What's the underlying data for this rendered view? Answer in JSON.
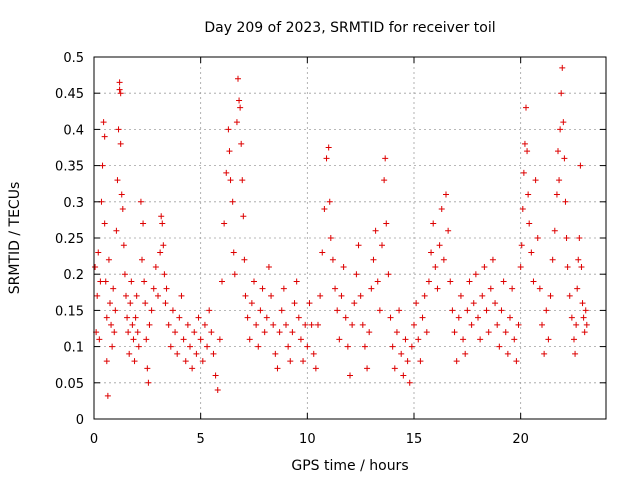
{
  "chart_data": {
    "type": "scatter",
    "title": "Day 209 of 2023, SRMTID for receiver toil",
    "xlabel": "GPS time / hours",
    "ylabel": "SRMTID / TECUs",
    "xlim": [
      0,
      24
    ],
    "ylim": [
      0,
      0.5
    ],
    "xticks": [
      0,
      5,
      10,
      15,
      20
    ],
    "xtick_labels": [
      "0",
      "5",
      "10",
      "15",
      "20"
    ],
    "yticks": [
      0,
      0.05,
      0.1,
      0.15,
      0.2,
      0.25,
      0.3,
      0.35,
      0.4,
      0.45,
      0.5
    ],
    "ytick_labels": [
      "0",
      "0.05",
      "0.1",
      "0.15",
      "0.2",
      "0.25",
      "0.3",
      "0.35",
      "0.4",
      "0.45",
      "0.5"
    ],
    "grid": true,
    "marker": "plus",
    "color": "#dd0000",
    "series": [
      {
        "points": [
          [
            0.05,
            0.21
          ],
          [
            0.1,
            0.12
          ],
          [
            0.15,
            0.17
          ],
          [
            0.2,
            0.23
          ],
          [
            0.25,
            0.11
          ],
          [
            0.3,
            0.19
          ],
          [
            0.35,
            0.3
          ],
          [
            0.4,
            0.35
          ],
          [
            0.45,
            0.41
          ],
          [
            0.5,
            0.39
          ],
          [
            0.5,
            0.27
          ],
          [
            0.55,
            0.19
          ],
          [
            0.6,
            0.14
          ],
          [
            0.6,
            0.08
          ],
          [
            0.65,
            0.032
          ],
          [
            0.7,
            0.22
          ],
          [
            0.75,
            0.16
          ],
          [
            0.8,
            0.13
          ],
          [
            0.85,
            0.1
          ],
          [
            0.9,
            0.18
          ],
          [
            0.95,
            0.12
          ],
          [
            1.0,
            0.15
          ],
          [
            1.05,
            0.26
          ],
          [
            1.1,
            0.33
          ],
          [
            1.15,
            0.4
          ],
          [
            1.2,
            0.465
          ],
          [
            1.2,
            0.455
          ],
          [
            1.25,
            0.45
          ],
          [
            1.25,
            0.38
          ],
          [
            1.3,
            0.31
          ],
          [
            1.35,
            0.29
          ],
          [
            1.4,
            0.24
          ],
          [
            1.45,
            0.2
          ],
          [
            1.5,
            0.17
          ],
          [
            1.55,
            0.14
          ],
          [
            1.6,
            0.12
          ],
          [
            1.65,
            0.09
          ],
          [
            1.7,
            0.16
          ],
          [
            1.75,
            0.19
          ],
          [
            1.8,
            0.13
          ],
          [
            1.85,
            0.11
          ],
          [
            1.9,
            0.08
          ],
          [
            1.95,
            0.14
          ],
          [
            2.0,
            0.17
          ],
          [
            2.05,
            0.12
          ],
          [
            2.1,
            0.1
          ],
          [
            2.2,
            0.3
          ],
          [
            2.25,
            0.22
          ],
          [
            2.3,
            0.27
          ],
          [
            2.35,
            0.19
          ],
          [
            2.4,
            0.16
          ],
          [
            2.45,
            0.11
          ],
          [
            2.5,
            0.07
          ],
          [
            2.55,
            0.05
          ],
          [
            2.6,
            0.13
          ],
          [
            2.7,
            0.15
          ],
          [
            2.8,
            0.18
          ],
          [
            2.9,
            0.21
          ],
          [
            3.0,
            0.17
          ],
          [
            3.1,
            0.23
          ],
          [
            3.15,
            0.28
          ],
          [
            3.2,
            0.27
          ],
          [
            3.25,
            0.24
          ],
          [
            3.3,
            0.2
          ],
          [
            3.35,
            0.16
          ],
          [
            3.4,
            0.18
          ],
          [
            3.5,
            0.13
          ],
          [
            3.6,
            0.1
          ],
          [
            3.7,
            0.15
          ],
          [
            3.8,
            0.12
          ],
          [
            3.9,
            0.09
          ],
          [
            4.0,
            0.14
          ],
          [
            4.1,
            0.17
          ],
          [
            4.2,
            0.11
          ],
          [
            4.3,
            0.08
          ],
          [
            4.4,
            0.13
          ],
          [
            4.5,
            0.1
          ],
          [
            4.6,
            0.07
          ],
          [
            4.7,
            0.12
          ],
          [
            4.8,
            0.09
          ],
          [
            4.9,
            0.14
          ],
          [
            5.0,
            0.11
          ],
          [
            5.1,
            0.08
          ],
          [
            5.2,
            0.13
          ],
          [
            5.3,
            0.1
          ],
          [
            5.4,
            0.15
          ],
          [
            5.5,
            0.12
          ],
          [
            5.6,
            0.09
          ],
          [
            5.7,
            0.06
          ],
          [
            5.8,
            0.04
          ],
          [
            5.9,
            0.11
          ],
          [
            6.0,
            0.19
          ],
          [
            6.1,
            0.27
          ],
          [
            6.2,
            0.34
          ],
          [
            6.3,
            0.4
          ],
          [
            6.35,
            0.37
          ],
          [
            6.4,
            0.33
          ],
          [
            6.5,
            0.3
          ],
          [
            6.55,
            0.23
          ],
          [
            6.6,
            0.2
          ],
          [
            6.7,
            0.41
          ],
          [
            6.75,
            0.47
          ],
          [
            6.8,
            0.44
          ],
          [
            6.85,
            0.43
          ],
          [
            6.9,
            0.38
          ],
          [
            6.95,
            0.33
          ],
          [
            7.0,
            0.28
          ],
          [
            7.05,
            0.22
          ],
          [
            7.1,
            0.17
          ],
          [
            7.2,
            0.14
          ],
          [
            7.3,
            0.11
          ],
          [
            7.4,
            0.16
          ],
          [
            7.5,
            0.19
          ],
          [
            7.6,
            0.13
          ],
          [
            7.7,
            0.1
          ],
          [
            7.8,
            0.15
          ],
          [
            7.9,
            0.18
          ],
          [
            8.0,
            0.12
          ],
          [
            8.1,
            0.14
          ],
          [
            8.2,
            0.21
          ],
          [
            8.3,
            0.17
          ],
          [
            8.4,
            0.13
          ],
          [
            8.5,
            0.09
          ],
          [
            8.6,
            0.07
          ],
          [
            8.7,
            0.12
          ],
          [
            8.8,
            0.15
          ],
          [
            8.9,
            0.18
          ],
          [
            9.0,
            0.13
          ],
          [
            9.1,
            0.1
          ],
          [
            9.2,
            0.08
          ],
          [
            9.3,
            0.12
          ],
          [
            9.4,
            0.16
          ],
          [
            9.5,
            0.19
          ],
          [
            9.6,
            0.14
          ],
          [
            9.7,
            0.11
          ],
          [
            9.8,
            0.08
          ],
          [
            9.9,
            0.13
          ],
          [
            10.0,
            0.1
          ],
          [
            10.1,
            0.16
          ],
          [
            10.2,
            0.13
          ],
          [
            10.3,
            0.09
          ],
          [
            10.4,
            0.07
          ],
          [
            10.5,
            0.13
          ],
          [
            10.6,
            0.17
          ],
          [
            10.7,
            0.23
          ],
          [
            10.8,
            0.29
          ],
          [
            10.9,
            0.36
          ],
          [
            11.0,
            0.375
          ],
          [
            11.05,
            0.3
          ],
          [
            11.1,
            0.25
          ],
          [
            11.2,
            0.22
          ],
          [
            11.3,
            0.18
          ],
          [
            11.4,
            0.15
          ],
          [
            11.5,
            0.11
          ],
          [
            11.6,
            0.17
          ],
          [
            11.7,
            0.21
          ],
          [
            11.8,
            0.14
          ],
          [
            11.9,
            0.1
          ],
          [
            12.0,
            0.06
          ],
          [
            12.1,
            0.13
          ],
          [
            12.2,
            0.16
          ],
          [
            12.3,
            0.2
          ],
          [
            12.4,
            0.24
          ],
          [
            12.5,
            0.17
          ],
          [
            12.6,
            0.13
          ],
          [
            12.7,
            0.1
          ],
          [
            12.8,
            0.07
          ],
          [
            12.9,
            0.12
          ],
          [
            13.0,
            0.18
          ],
          [
            13.1,
            0.22
          ],
          [
            13.2,
            0.26
          ],
          [
            13.3,
            0.19
          ],
          [
            13.4,
            0.15
          ],
          [
            13.5,
            0.24
          ],
          [
            13.6,
            0.33
          ],
          [
            13.65,
            0.36
          ],
          [
            13.7,
            0.27
          ],
          [
            13.8,
            0.2
          ],
          [
            13.9,
            0.14
          ],
          [
            14.0,
            0.1
          ],
          [
            14.1,
            0.07
          ],
          [
            14.2,
            0.12
          ],
          [
            14.3,
            0.15
          ],
          [
            14.4,
            0.09
          ],
          [
            14.5,
            0.06
          ],
          [
            14.6,
            0.11
          ],
          [
            14.7,
            0.08
          ],
          [
            14.8,
            0.05
          ],
          [
            14.9,
            0.1
          ],
          [
            15.0,
            0.13
          ],
          [
            15.1,
            0.16
          ],
          [
            15.2,
            0.11
          ],
          [
            15.3,
            0.08
          ],
          [
            15.4,
            0.14
          ],
          [
            15.5,
            0.17
          ],
          [
            15.6,
            0.12
          ],
          [
            15.7,
            0.19
          ],
          [
            15.8,
            0.23
          ],
          [
            15.9,
            0.27
          ],
          [
            16.0,
            0.21
          ],
          [
            16.1,
            0.18
          ],
          [
            16.2,
            0.24
          ],
          [
            16.3,
            0.29
          ],
          [
            16.4,
            0.22
          ],
          [
            16.5,
            0.31
          ],
          [
            16.6,
            0.26
          ],
          [
            16.7,
            0.19
          ],
          [
            16.8,
            0.15
          ],
          [
            16.9,
            0.12
          ],
          [
            17.0,
            0.08
          ],
          [
            17.1,
            0.14
          ],
          [
            17.2,
            0.17
          ],
          [
            17.3,
            0.11
          ],
          [
            17.4,
            0.09
          ],
          [
            17.5,
            0.15
          ],
          [
            17.6,
            0.19
          ],
          [
            17.7,
            0.13
          ],
          [
            17.8,
            0.16
          ],
          [
            17.9,
            0.2
          ],
          [
            18.0,
            0.14
          ],
          [
            18.1,
            0.11
          ],
          [
            18.2,
            0.17
          ],
          [
            18.3,
            0.21
          ],
          [
            18.4,
            0.15
          ],
          [
            18.5,
            0.12
          ],
          [
            18.6,
            0.18
          ],
          [
            18.7,
            0.22
          ],
          [
            18.8,
            0.16
          ],
          [
            18.9,
            0.13
          ],
          [
            19.0,
            0.1
          ],
          [
            19.1,
            0.15
          ],
          [
            19.2,
            0.19
          ],
          [
            19.3,
            0.12
          ],
          [
            19.4,
            0.09
          ],
          [
            19.5,
            0.14
          ],
          [
            19.6,
            0.18
          ],
          [
            19.7,
            0.11
          ],
          [
            19.8,
            0.08
          ],
          [
            19.9,
            0.13
          ],
          [
            20.0,
            0.21
          ],
          [
            20.05,
            0.24
          ],
          [
            20.1,
            0.29
          ],
          [
            20.15,
            0.34
          ],
          [
            20.2,
            0.38
          ],
          [
            20.25,
            0.43
          ],
          [
            20.3,
            0.37
          ],
          [
            20.35,
            0.31
          ],
          [
            20.4,
            0.27
          ],
          [
            20.5,
            0.23
          ],
          [
            20.6,
            0.19
          ],
          [
            20.7,
            0.33
          ],
          [
            20.8,
            0.25
          ],
          [
            20.9,
            0.18
          ],
          [
            21.0,
            0.13
          ],
          [
            21.1,
            0.09
          ],
          [
            21.2,
            0.15
          ],
          [
            21.3,
            0.11
          ],
          [
            21.4,
            0.17
          ],
          [
            21.5,
            0.22
          ],
          [
            21.6,
            0.26
          ],
          [
            21.7,
            0.31
          ],
          [
            21.75,
            0.37
          ],
          [
            21.8,
            0.33
          ],
          [
            21.85,
            0.4
          ],
          [
            21.9,
            0.45
          ],
          [
            21.95,
            0.485
          ],
          [
            22.0,
            0.41
          ],
          [
            22.05,
            0.36
          ],
          [
            22.1,
            0.3
          ],
          [
            22.15,
            0.25
          ],
          [
            22.2,
            0.21
          ],
          [
            22.3,
            0.17
          ],
          [
            22.4,
            0.14
          ],
          [
            22.5,
            0.11
          ],
          [
            22.55,
            0.09
          ],
          [
            22.6,
            0.13
          ],
          [
            22.65,
            0.18
          ],
          [
            22.7,
            0.22
          ],
          [
            22.75,
            0.25
          ],
          [
            22.8,
            0.35
          ],
          [
            22.85,
            0.21
          ],
          [
            22.9,
            0.16
          ],
          [
            22.95,
            0.14
          ],
          [
            23.0,
            0.12
          ],
          [
            23.05,
            0.15
          ],
          [
            23.1,
            0.13
          ]
        ]
      }
    ]
  }
}
